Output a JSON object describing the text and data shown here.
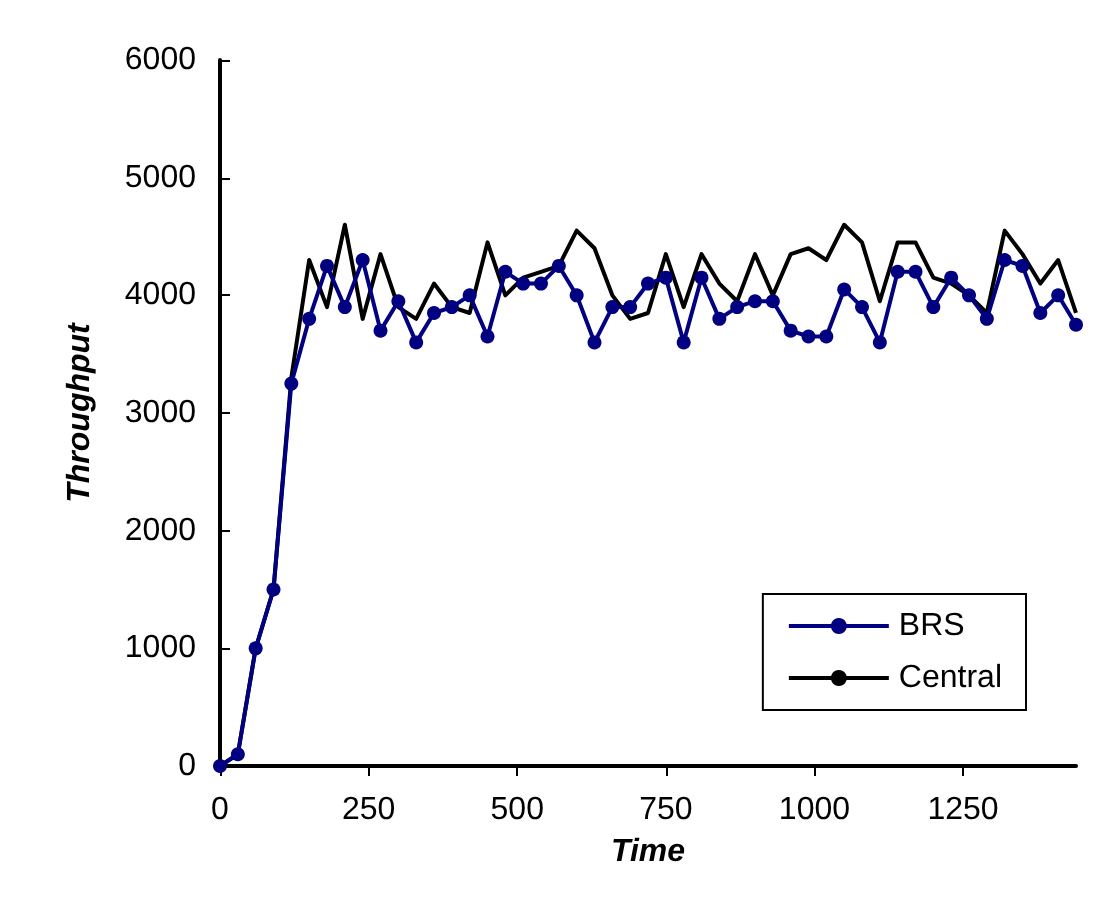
{
  "chart_data": {
    "type": "line",
    "xlabel": "Time",
    "ylabel": "Throughput",
    "x": [
      0,
      30,
      60,
      90,
      120,
      150,
      180,
      210,
      240,
      270,
      300,
      330,
      360,
      390,
      420,
      450,
      480,
      510,
      540,
      570,
      600,
      630,
      660,
      690,
      720,
      750,
      780,
      810,
      840,
      870,
      900,
      930,
      960,
      990,
      1020,
      1050,
      1080,
      1110,
      1140,
      1170,
      1200,
      1230,
      1260,
      1290,
      1320,
      1350,
      1380,
      1410,
      1440
    ],
    "series": [
      {
        "name": "BRS",
        "color": "#000080",
        "marker": "circle",
        "values": [
          0,
          100,
          1000,
          1500,
          3250,
          3800,
          4250,
          3900,
          4300,
          3700,
          3950,
          3600,
          3850,
          3900,
          4000,
          3650,
          4200,
          4100,
          4100,
          4250,
          4000,
          3600,
          3900,
          3900,
          4100,
          4150,
          3600,
          4150,
          3800,
          3900,
          3950,
          3950,
          3700,
          3650,
          3650,
          4050,
          3900,
          3600,
          4200,
          4200,
          3900,
          4150,
          4000,
          3800,
          4300,
          4250,
          3850,
          4000,
          3750
        ]
      },
      {
        "name": "Central",
        "color": "#000000",
        "marker": "none",
        "values": [
          0,
          100,
          1000,
          1500,
          3300,
          4300,
          3900,
          4600,
          3800,
          4350,
          3900,
          3800,
          4100,
          3900,
          3850,
          4450,
          4000,
          4150,
          4200,
          4250,
          4550,
          4400,
          4000,
          3800,
          3850,
          4350,
          3900,
          4350,
          4100,
          3950,
          4350,
          4000,
          4350,
          4400,
          4300,
          4600,
          4450,
          3950,
          4450,
          4450,
          4150,
          4100,
          4000,
          3850,
          4550,
          4350,
          4100,
          4300,
          3850
        ]
      }
    ],
    "xlim": [
      0,
      1440
    ],
    "xticks": [
      0,
      250,
      500,
      750,
      1000,
      1250
    ],
    "ylim": [
      0,
      6000
    ],
    "yticks": [
      0,
      1000,
      2000,
      3000,
      4000,
      5000,
      6000
    ],
    "grid": false,
    "legend": "bottom right",
    "line_style": "solid"
  }
}
